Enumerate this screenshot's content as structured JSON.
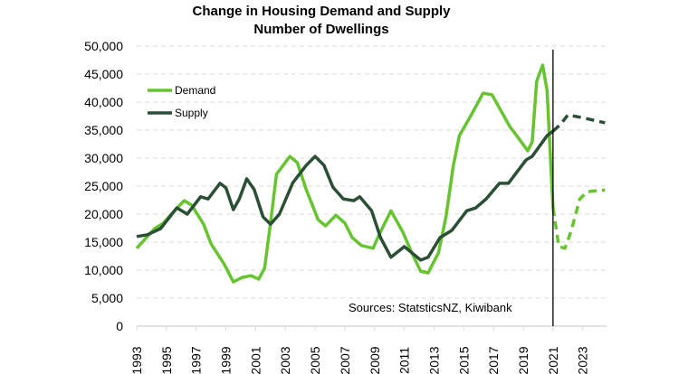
{
  "chart_data": {
    "type": "line",
    "title": "Change in Housing Demand and Supply",
    "subtitle": "Number of Dwellings",
    "xlabel": "",
    "ylabel": "",
    "ylim": [
      0,
      50000
    ],
    "xlim": [
      1993,
      2024.6
    ],
    "yticks": [
      0,
      5000,
      10000,
      15000,
      20000,
      25000,
      30000,
      35000,
      40000,
      45000,
      50000
    ],
    "ytick_labels": [
      "0",
      "5,000",
      "10,000",
      "15,000",
      "20,000",
      "25,000",
      "30,000",
      "35,000",
      "40,000",
      "45,000",
      "50,000"
    ],
    "xticks": [
      1993,
      1995,
      1997,
      1999,
      2001,
      2003,
      2005,
      2007,
      2009,
      2011,
      2013,
      2015,
      2017,
      2019,
      2021,
      2023
    ],
    "xtick_labels": [
      "1993",
      "1995",
      "1997",
      "1999",
      "2001",
      "2003",
      "2005",
      "2007",
      "2009",
      "2011",
      "2013",
      "2015",
      "2017",
      "2019",
      "2021",
      "2023"
    ],
    "grid": true,
    "legend_position": "top-left",
    "annotation": "Sources: StatsticsNZ, Kiwibank",
    "forecast_start": 2021,
    "series": [
      {
        "name": "Demand",
        "color": "#66c431",
        "x": [
          1993.0,
          1994.2,
          1994.8,
          1995.6,
          1996.2,
          1996.7,
          1997.5,
          1998.0,
          1998.9,
          1999.5,
          2000.1,
          2000.7,
          2001.2,
          2001.6,
          2002.0,
          2002.4,
          2003.3,
          2003.8,
          2004.4,
          2005.2,
          2005.7,
          2006.4,
          2007.0,
          2007.5,
          2008.1,
          2008.9,
          2009.3,
          2010.1,
          2010.9,
          2011.5,
          2012.1,
          2012.6,
          2013.3,
          2013.8,
          2014.3,
          2014.7,
          2015.5,
          2016.3,
          2016.9,
          2018.1,
          2018.7,
          2019.3,
          2019.6,
          2019.9,
          2020.3,
          2020.6,
          2021.0
        ],
        "values": [
          13900,
          17400,
          18400,
          20800,
          22400,
          21600,
          18200,
          14700,
          11000,
          7900,
          8700,
          9000,
          8400,
          10300,
          18400,
          27100,
          30300,
          29200,
          24400,
          19000,
          17900,
          19800,
          18400,
          15800,
          14400,
          13900,
          16300,
          20600,
          16800,
          13100,
          9800,
          9500,
          13100,
          19500,
          28700,
          34000,
          37700,
          41600,
          41300,
          35600,
          33500,
          31300,
          32900,
          43700,
          46600,
          42100,
          21100
        ],
        "forecast_x": [
          2021.0,
          2021.4,
          2021.8,
          2022.2,
          2022.8,
          2023.3,
          2024.0,
          2024.5
        ],
        "forecast_values": [
          21100,
          14200,
          13900,
          16800,
          22700,
          24000,
          24200,
          24300
        ]
      },
      {
        "name": "Supply",
        "color": "#2a4f35",
        "x": [
          1993.0,
          1993.7,
          1994.6,
          1995.7,
          1996.4,
          1997.3,
          1997.8,
          1998.6,
          1999.0,
          1999.5,
          1999.9,
          2000.4,
          2000.9,
          2001.5,
          2002.0,
          2002.6,
          2003.5,
          2004.4,
          2005.0,
          2005.6,
          2006.2,
          2006.9,
          2007.6,
          2008.0,
          2008.8,
          2009.4,
          2010.1,
          2011.0,
          2012.1,
          2012.6,
          2013.4,
          2014.2,
          2015.2,
          2015.8,
          2016.5,
          2017.4,
          2018.0,
          2019.2,
          2019.6,
          2020.6,
          2021.0
        ],
        "values": [
          16000,
          16300,
          17400,
          21100,
          20000,
          23100,
          22700,
          25500,
          24700,
          20800,
          22700,
          26300,
          24400,
          19500,
          18200,
          20000,
          25600,
          28700,
          30300,
          28700,
          24800,
          22700,
          22400,
          23100,
          20600,
          15800,
          12300,
          14200,
          11800,
          12300,
          15800,
          17100,
          20600,
          21100,
          22700,
          25500,
          25500,
          29700,
          30300,
          34000,
          34800
        ],
        "forecast_x": [
          2021.0,
          2021.5,
          2022.0,
          2023.0,
          2024.0,
          2024.5
        ],
        "forecast_values": [
          34800,
          36000,
          37700,
          37200,
          36600,
          36300
        ]
      }
    ]
  }
}
